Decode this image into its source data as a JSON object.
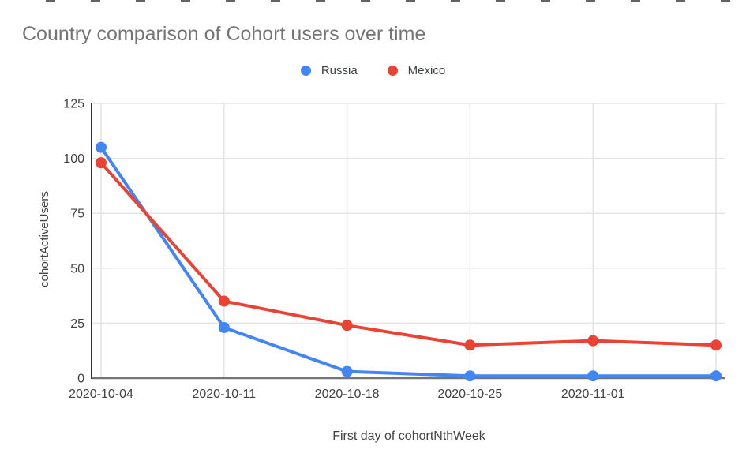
{
  "chart_data": {
    "type": "line",
    "title": "Country comparison of Cohort users over time",
    "xlabel": "First day of cohortNthWeek",
    "ylabel": "cohortActiveUsers",
    "categories": [
      "2020-10-04",
      "2020-10-11",
      "2020-10-18",
      "2020-10-25",
      "2020-11-01",
      ""
    ],
    "series": [
      {
        "name": "Russia",
        "color": "#4285F4",
        "values": [
          105,
          23,
          3,
          1,
          1,
          1
        ]
      },
      {
        "name": "Mexico",
        "color": "#EA4335",
        "values": [
          98,
          35,
          24,
          15,
          17,
          15
        ]
      }
    ],
    "ylim": [
      0,
      125
    ],
    "yticks": [
      0,
      25,
      50,
      75,
      100,
      125
    ],
    "grid": true,
    "legend_position": "top",
    "title_color": "#757575",
    "axis_text_color": "#424242",
    "legend_text_color": "#3c4043",
    "gridline_color": "#e4e4e4",
    "axis_line_color": "#333333",
    "bottom_axis_color": "#757575"
  }
}
